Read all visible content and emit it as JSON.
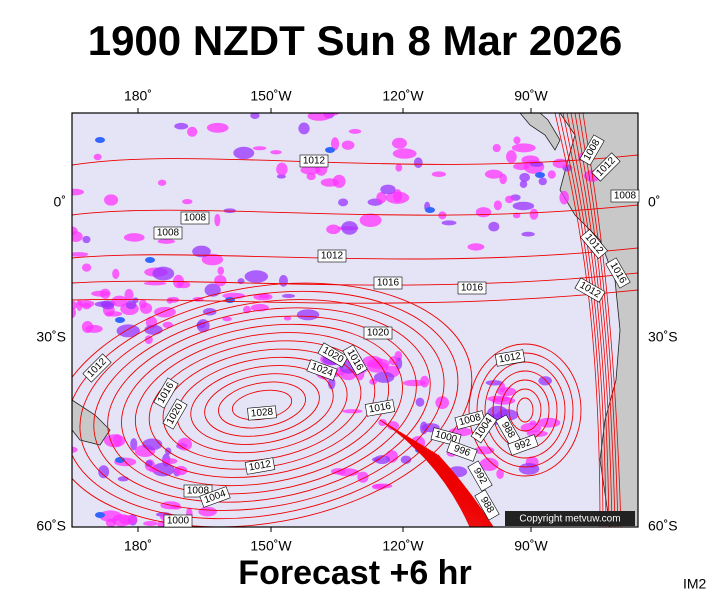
{
  "header": {
    "title": "1900 NZDT Sun 8 Mar 2026"
  },
  "axes": {
    "lon_top": [
      "180˚",
      "150˚W",
      "120˚W",
      "90˚W"
    ],
    "lon_bottom": [
      "180˚",
      "150˚W",
      "120˚W",
      "90˚W"
    ],
    "lat_left": [
      "0˚",
      "30˚S",
      "60˚S"
    ],
    "lat_right": [
      "0˚",
      "30˚S",
      "60˚S"
    ]
  },
  "map": {
    "isobar_labels": [
      "1012",
      "1008",
      "1008",
      "1012",
      "1016",
      "1016",
      "1020",
      "1020",
      "1016",
      "1024",
      "1012",
      "1016",
      "1020",
      "1028",
      "1016",
      "1012",
      "1008",
      "1004",
      "1000",
      "996",
      "988",
      "992",
      "992",
      "988",
      "1012",
      "1008",
      "1004",
      "1000",
      "1008",
      "1012",
      "1008",
      "1012",
      "1016",
      "1012"
    ],
    "copyright": "Copyright metvuw.com"
  },
  "footer": {
    "forecast": "Forecast +6 hr",
    "code": "IM2"
  }
}
